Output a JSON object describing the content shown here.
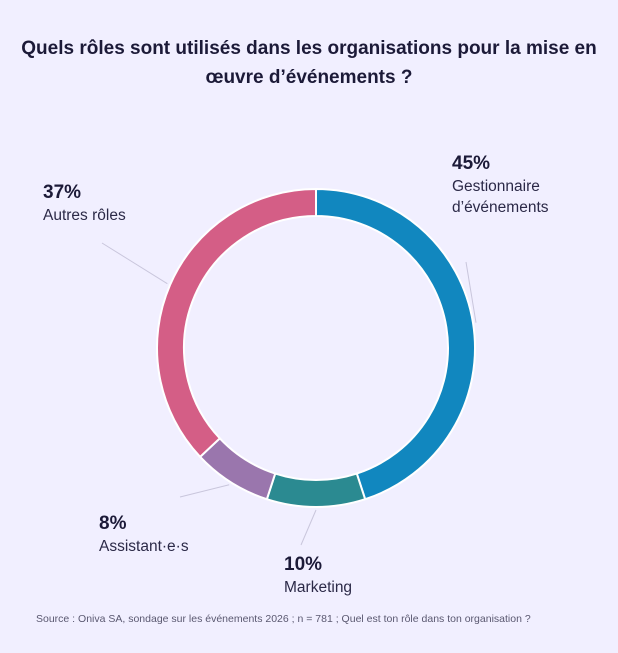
{
  "title": "Quels rôles sont utilisés dans les organisations pour la mise en œuvre d’événements ?",
  "source": "Source : Oniva SA, sondage sur les événements 2026 ; n = 781 ; Quel est ton rôle dans ton organisation ?",
  "chart_data": {
    "type": "pie",
    "style": "donut",
    "slices": [
      {
        "label_lines": [
          "Gestionnaire",
          "d’événements"
        ],
        "value": 45,
        "value_label": "45%",
        "color": "#1187bf"
      },
      {
        "label_lines": [
          "Marketing"
        ],
        "value": 10,
        "value_label": "10%",
        "color": "#2b8a91"
      },
      {
        "label_lines": [
          "Assistant·e·s"
        ],
        "value": 8,
        "value_label": "8%",
        "color": "#9a76ad"
      },
      {
        "label_lines": [
          "Autres rôles"
        ],
        "value": 37,
        "value_label": "37%",
        "color": "#d45e86"
      }
    ]
  }
}
